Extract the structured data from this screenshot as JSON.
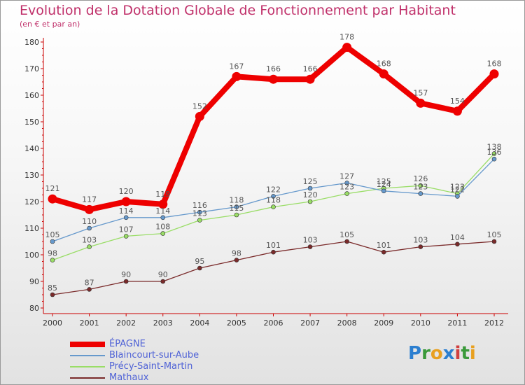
{
  "header": {
    "title": "Evolution de la Dotation Globale de Fonctionnement par Habitant",
    "subtitle": "(en € et par an)"
  },
  "logo": {
    "text": "Proxiti",
    "letters": [
      {
        "char": "P",
        "color": "#2c7fd0"
      },
      {
        "char": "r",
        "color": "#3a9a3a"
      },
      {
        "char": "o",
        "color": "#e8a020"
      },
      {
        "char": "x",
        "color": "#2c7fd0"
      },
      {
        "char": "i",
        "color": "#d04040"
      },
      {
        "char": "t",
        "color": "#3a9a3a"
      },
      {
        "char": "i",
        "color": "#e8a020"
      }
    ]
  },
  "chart_data": {
    "type": "line",
    "title": "Evolution de la Dotation Globale de Fonctionnement par Habitant",
    "subtitle": "(en € et par an)",
    "xlabel": "",
    "ylabel": "",
    "x": [
      "2000",
      "2001",
      "2002",
      "2003",
      "2004",
      "2005",
      "2006",
      "2007",
      "2008",
      "2009",
      "2010",
      "2011",
      "2012"
    ],
    "ylim": [
      80,
      180
    ],
    "yticks": [
      80,
      90,
      100,
      110,
      120,
      130,
      140,
      150,
      160,
      170,
      180
    ],
    "grid": false,
    "legend": "bottom-left",
    "series": [
      {
        "name": "ÉPAGNE",
        "color": "#ee0000",
        "values": [
          121,
          117,
          120,
          119,
          152,
          167,
          166,
          166,
          178,
          168,
          157,
          154,
          168
        ],
        "labels": [
          "121",
          "117",
          "120",
          "119",
          "152",
          "167",
          "166",
          "166",
          "178",
          "168",
          "157",
          "154",
          "168"
        ]
      },
      {
        "name": "Blaincourt-sur-Aube",
        "color": "#6699cc",
        "values": [
          105,
          110,
          114,
          114,
          116,
          118,
          122,
          125,
          127,
          124,
          123,
          122,
          136
        ],
        "labels": [
          "105",
          "110",
          "114",
          "114",
          "116",
          "118",
          "122",
          "125",
          "127",
          "124",
          "123",
          "122",
          "136"
        ]
      },
      {
        "name": "Précy-Saint-Martin",
        "color": "#99dd66",
        "values": [
          98,
          103,
          107,
          108,
          113,
          115,
          118,
          120,
          123,
          125,
          126,
          123,
          138
        ],
        "labels": [
          "98",
          "103",
          "107",
          "108",
          "113",
          "115",
          "118",
          "120",
          "123",
          "125",
          "126",
          "123",
          "138"
        ]
      },
      {
        "name": "Mathaux",
        "color": "#7a2a2a",
        "values": [
          85,
          87,
          90,
          90,
          95,
          98,
          101,
          103,
          105,
          101,
          103,
          104,
          105
        ],
        "labels": [
          "85",
          "87",
          "90",
          "90",
          "95",
          "98",
          "101",
          "103",
          "105",
          "101",
          "103",
          "104",
          "105"
        ]
      }
    ]
  }
}
